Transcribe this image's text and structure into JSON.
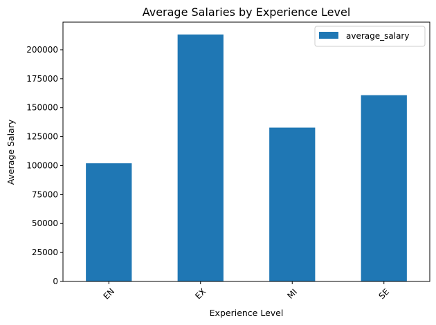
{
  "chart_data": {
    "type": "bar",
    "title": "Average Salaries by Experience Level",
    "xlabel": "Experience Level",
    "ylabel": "Average Salary",
    "categories": [
      "EN",
      "EX",
      "MI",
      "SE"
    ],
    "series": [
      {
        "name": "average_salary",
        "values": [
          102000,
          213200,
          132800,
          160800
        ],
        "color": "#1f77b4"
      }
    ],
    "ylim": [
      0,
      223860
    ],
    "yticks": [
      0,
      25000,
      50000,
      75000,
      100000,
      125000,
      150000,
      175000,
      200000
    ],
    "x_tick_rotation": 45,
    "legend": {
      "position": "top-right"
    },
    "grid": false
  }
}
